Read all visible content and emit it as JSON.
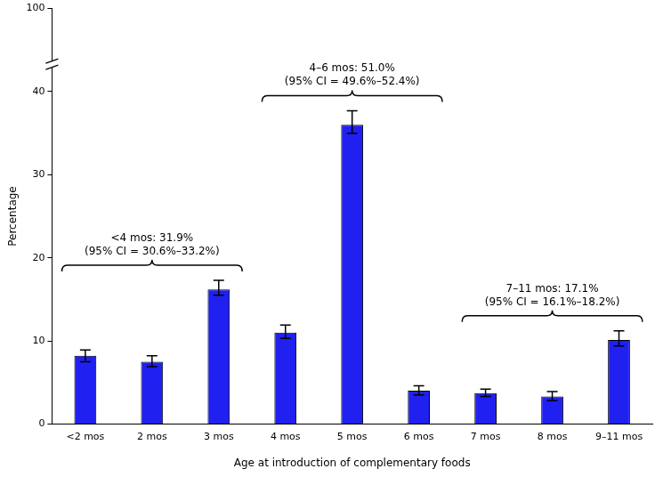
{
  "chart_data": {
    "type": "bar",
    "x_label": "Age at introduction of complementary foods",
    "y_label": "Percentage",
    "categories": [
      "<2 mos",
      "2 mos",
      "3 mos",
      "4 mos",
      "5 mos",
      "6 mos",
      "7 mos",
      "8 mos",
      "9–11 mos"
    ],
    "values": [
      8.2,
      7.5,
      16.2,
      11.0,
      36.0,
      4.0,
      3.7,
      3.3,
      10.1
    ],
    "error_low": [
      7.5,
      6.9,
      15.5,
      10.3,
      35.0,
      3.5,
      3.3,
      2.8,
      9.4
    ],
    "error_high": [
      8.9,
      8.2,
      17.3,
      11.9,
      37.7,
      4.6,
      4.2,
      3.9,
      11.2
    ],
    "color": "#2020f0",
    "ylim": [
      0,
      100
    ],
    "yticks": [
      0,
      10,
      20,
      30,
      40,
      100
    ],
    "grid": false,
    "annotations": [
      {
        "text": [
          "<4 mos: 31.9%",
          "(95% CI = 30.6%–33.2%)"
        ],
        "from": "<2 mos",
        "to": "3 mos"
      },
      {
        "text": [
          "4–6 mos: 51.0%",
          "(95% CI = 49.6%–52.4%)"
        ],
        "from": "4 mos",
        "to": "6 mos"
      },
      {
        "text": [
          "7–11 mos: 17.1%",
          "(95% CI = 16.1%–18.2%)"
        ],
        "from": "7 mos",
        "to": "9–11 mos"
      }
    ]
  }
}
